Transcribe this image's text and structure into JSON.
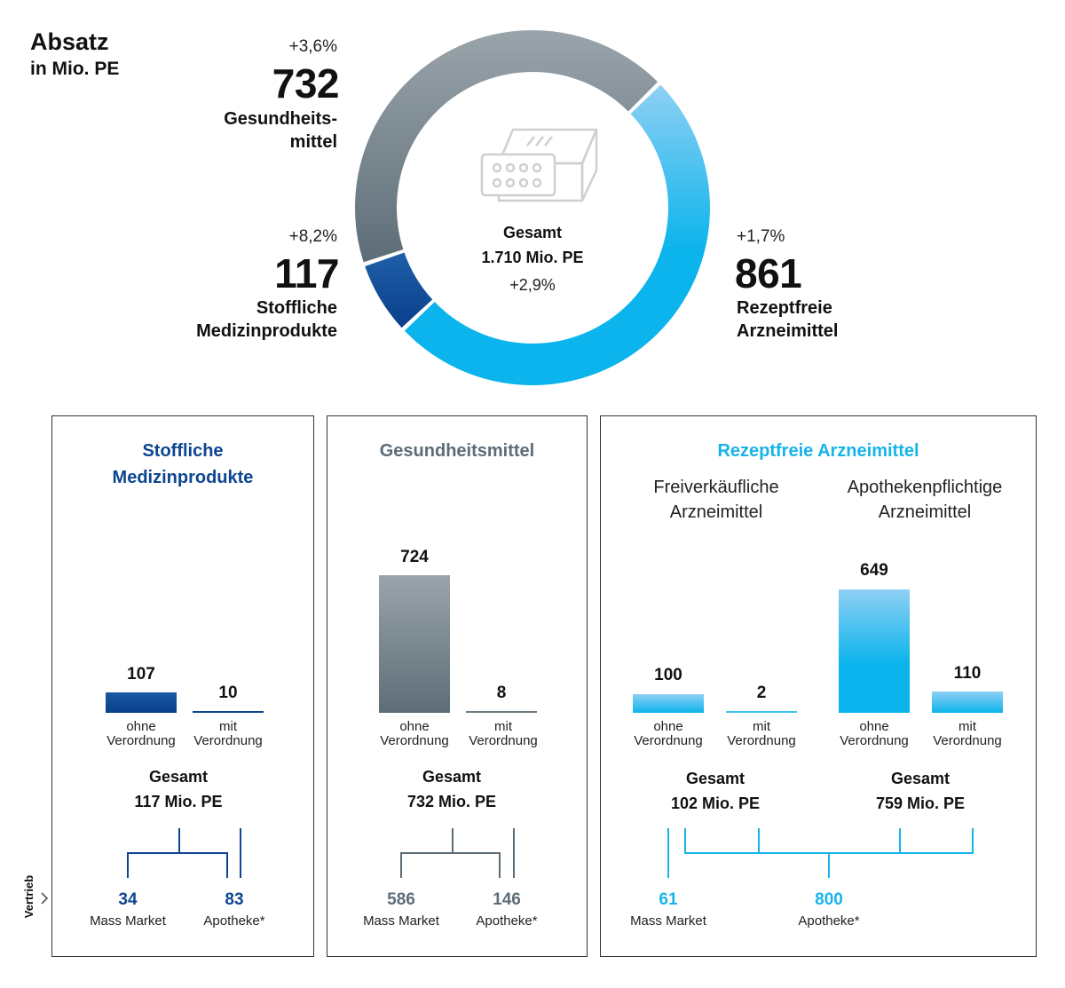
{
  "header": {
    "title": "Absatz",
    "subtitle": "in Mio. PE"
  },
  "donut": {
    "center_title": "Gesamt",
    "center_value": "1.710 Mio. PE",
    "center_change": "+2,9%",
    "segments": [
      {
        "key": "gesundheit",
        "value": 732,
        "value_label": "732",
        "change": "+3,6%",
        "label_lines": [
          "Gesundheits-",
          "mittel"
        ],
        "color_start": "#9aa4ab",
        "color_end": "#5d6d77"
      },
      {
        "key": "rezeptfrei",
        "value": 861,
        "value_label": "861",
        "change": "+1,7%",
        "label_lines": [
          "Rezeptfreie",
          "Arzneimittel"
        ],
        "color_start": "#8fd0f4",
        "color_end": "#0bb4ec"
      },
      {
        "key": "stofflich",
        "value": 117,
        "value_label": "117",
        "change": "+8,2%",
        "label_lines": [
          "Stoffliche",
          "Medizinprodukte"
        ],
        "color_start": "#1f5fa8",
        "color_end": "#0a3f8c"
      }
    ]
  },
  "panels": {
    "stofflich": {
      "title_lines": [
        "Stoffliche",
        "Medizinprodukte"
      ],
      "color": "#0d4591",
      "bars": [
        {
          "value": 107,
          "label_lines": [
            "ohne",
            "Verordnung"
          ]
        },
        {
          "value": 10,
          "label_lines": [
            "mit",
            "Verordnung"
          ]
        }
      ],
      "total_label": "Gesamt",
      "total_value": "117 Mio. PE",
      "distribution": [
        {
          "value": "34",
          "label": "Mass Market"
        },
        {
          "value": "83",
          "label": "Apotheke*"
        }
      ]
    },
    "gesundheit": {
      "title": "Gesundheitsmittel",
      "color": "#5d6d77",
      "bars": [
        {
          "value": 724,
          "label_lines": [
            "ohne",
            "Verordnung"
          ]
        },
        {
          "value": 8,
          "label_lines": [
            "mit",
            "Verordnung"
          ]
        }
      ],
      "total_label": "Gesamt",
      "total_value": "732 Mio. PE",
      "distribution": [
        {
          "value": "586",
          "label": "Mass Market"
        },
        {
          "value": "146",
          "label": "Apotheke*"
        }
      ]
    },
    "rezeptfrei": {
      "title": "Rezeptfreie Arzneimittel",
      "color": "#17b4ea",
      "groups": [
        {
          "title_lines": [
            "Freiverkäufliche",
            "Arzneimittel"
          ],
          "bars": [
            {
              "value": 100,
              "label_lines": [
                "ohne",
                "Verordnung"
              ]
            },
            {
              "value": 2,
              "label_lines": [
                "mit",
                "Verordnung"
              ]
            }
          ],
          "total_label": "Gesamt",
          "total_value": "102 Mio. PE"
        },
        {
          "title_lines": [
            "Apothekenpflichtige",
            "Arzneimittel"
          ],
          "bars": [
            {
              "value": 649,
              "label_lines": [
                "ohne",
                "Verordnung"
              ]
            },
            {
              "value": 110,
              "label_lines": [
                "mit",
                "Verordnung"
              ]
            }
          ],
          "total_label": "Gesamt",
          "total_value": "759 Mio. PE"
        }
      ],
      "distribution": [
        {
          "value": "61",
          "label": "Mass Market"
        },
        {
          "value": "800",
          "label": "Apotheke*"
        }
      ]
    }
  },
  "side_label": "Vertrieb",
  "chart_data": [
    {
      "type": "pie",
      "title": "Absatz",
      "subtitle": "in Mio. PE",
      "categories": [
        "Gesundheitsmittel",
        "Rezeptfreie Arzneimittel",
        "Stoffliche Medizinprodukte"
      ],
      "values": [
        732,
        861,
        117
      ],
      "changes": [
        "+3,6%",
        "+1,7%",
        "+8,2%"
      ],
      "total": 1710,
      "total_change": "+2,9%",
      "legend": "none"
    },
    {
      "type": "bar",
      "title": "Stoffliche Medizinprodukte",
      "categories": [
        "ohne Verordnung",
        "mit Verordnung"
      ],
      "values": [
        107,
        10
      ],
      "total": 117,
      "distribution": {
        "Mass Market": 34,
        "Apotheke*": 83
      }
    },
    {
      "type": "bar",
      "title": "Gesundheitsmittel",
      "categories": [
        "ohne Verordnung",
        "mit Verordnung"
      ],
      "values": [
        724,
        8
      ],
      "total": 732,
      "distribution": {
        "Mass Market": 586,
        "Apotheke*": 146
      }
    },
    {
      "type": "bar",
      "title": "Rezeptfreie Arzneimittel",
      "categories": [
        "Freiverkäufliche Arzneimittel ohne Verordnung",
        "Freiverkäufliche Arzneimittel mit Verordnung",
        "Apothekenpflichtige Arzneimittel ohne Verordnung",
        "Apothekenpflichtige Arzneimittel mit Verordnung"
      ],
      "values": [
        100,
        2,
        649,
        110
      ],
      "totals": {
        "Freiverkäufliche Arzneimittel": 102,
        "Apothekenpflichtige Arzneimittel": 759
      },
      "distribution": {
        "Mass Market": 61,
        "Apotheke*": 800
      }
    }
  ]
}
